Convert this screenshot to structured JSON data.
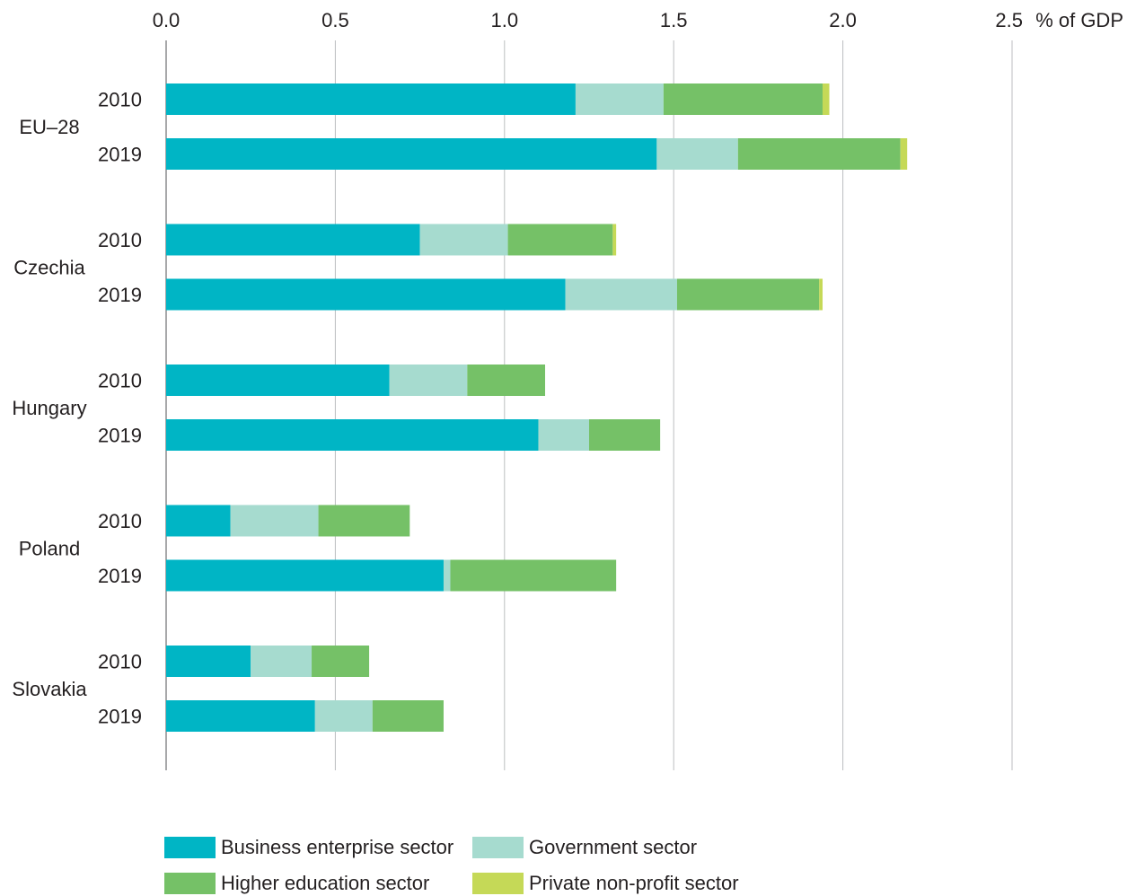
{
  "chart_data": {
    "type": "bar",
    "orientation": "horizontal",
    "stacked": true,
    "unit_label": "% of GDP",
    "xlim": [
      0,
      2.5
    ],
    "xticks": [
      "0.0",
      "0.5",
      "1.0",
      "1.5",
      "2.0",
      "2.5"
    ],
    "grid": true,
    "legend_position": "bottom",
    "groups": [
      {
        "name": "EU–28",
        "categories": [
          "2010",
          "2019"
        ]
      },
      {
        "name": "Czechia",
        "categories": [
          "2010",
          "2019"
        ]
      },
      {
        "name": "Hungary",
        "categories": [
          "2010",
          "2019"
        ]
      },
      {
        "name": "Poland",
        "categories": [
          "2010",
          "2019"
        ]
      },
      {
        "name": "Slovakia",
        "categories": [
          "2010",
          "2019"
        ]
      }
    ],
    "series": [
      {
        "name": "Business enterprise sector",
        "color": "#00b5c5",
        "values": [
          1.21,
          1.45,
          0.75,
          1.18,
          0.66,
          1.1,
          0.19,
          0.82,
          0.25,
          0.44
        ]
      },
      {
        "name": "Government sector",
        "color": "#a6dbcf",
        "values": [
          0.26,
          0.24,
          0.26,
          0.33,
          0.23,
          0.15,
          0.26,
          0.02,
          0.18,
          0.17
        ]
      },
      {
        "name": "Higher education sector",
        "color": "#75c167",
        "values": [
          0.47,
          0.48,
          0.31,
          0.42,
          0.23,
          0.21,
          0.27,
          0.49,
          0.17,
          0.21
        ]
      },
      {
        "name": "Private non-profit sector",
        "color": "#c5d957",
        "values": [
          0.02,
          0.02,
          0.01,
          0.01,
          0.0,
          0.0,
          0.0,
          0.0,
          0.0,
          0.0
        ]
      }
    ]
  }
}
